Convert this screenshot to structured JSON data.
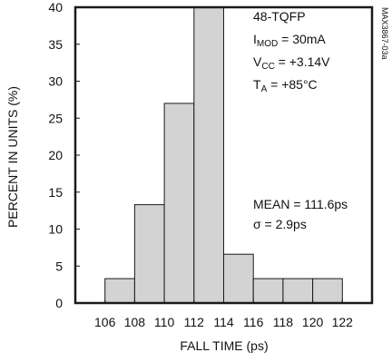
{
  "chart_data": {
    "type": "bar",
    "title": "",
    "xlabel": "FALL TIME (ps)",
    "ylabel": "PERCENT IN UNITS (%)",
    "xlim": [
      104,
      124
    ],
    "ylim": [
      0,
      40
    ],
    "x_ticks": [
      "106",
      "108",
      "110",
      "112",
      "114",
      "116",
      "118",
      "120",
      "122"
    ],
    "y_ticks": [
      "0",
      "5",
      "10",
      "15",
      "20",
      "25",
      "30",
      "35",
      "40"
    ],
    "bins": [
      {
        "x0": 106,
        "x1": 108,
        "value": 3.3
      },
      {
        "x0": 108,
        "x1": 110,
        "value": 13.3
      },
      {
        "x0": 110,
        "x1": 112,
        "value": 27.0
      },
      {
        "x0": 112,
        "x1": 114,
        "value": 40.0
      },
      {
        "x0": 114,
        "x1": 116,
        "value": 6.6
      },
      {
        "x0": 116,
        "x1": 118,
        "value": 3.3
      },
      {
        "x0": 118,
        "x1": 120,
        "value": 3.3
      },
      {
        "x0": 120,
        "x1": 122,
        "value": 3.3
      }
    ],
    "bar_color": "#d3d3d3",
    "edge_color": "#1a1a1a",
    "grid": false,
    "conditions": {
      "package": "48-TQFP",
      "imod": {
        "symbol": "I",
        "sub": "MOD",
        "value": " = 30mA"
      },
      "vcc": {
        "symbol": "V",
        "sub": "CC",
        "value": " = +3.14V"
      },
      "ta": {
        "symbol": "T",
        "sub": "A",
        "value": " = +85°C"
      }
    },
    "stats": {
      "mean": "MEAN = 111.6ps",
      "sigma": "σ = 2.9ps"
    },
    "figure_code": "MAX3867-03a"
  }
}
